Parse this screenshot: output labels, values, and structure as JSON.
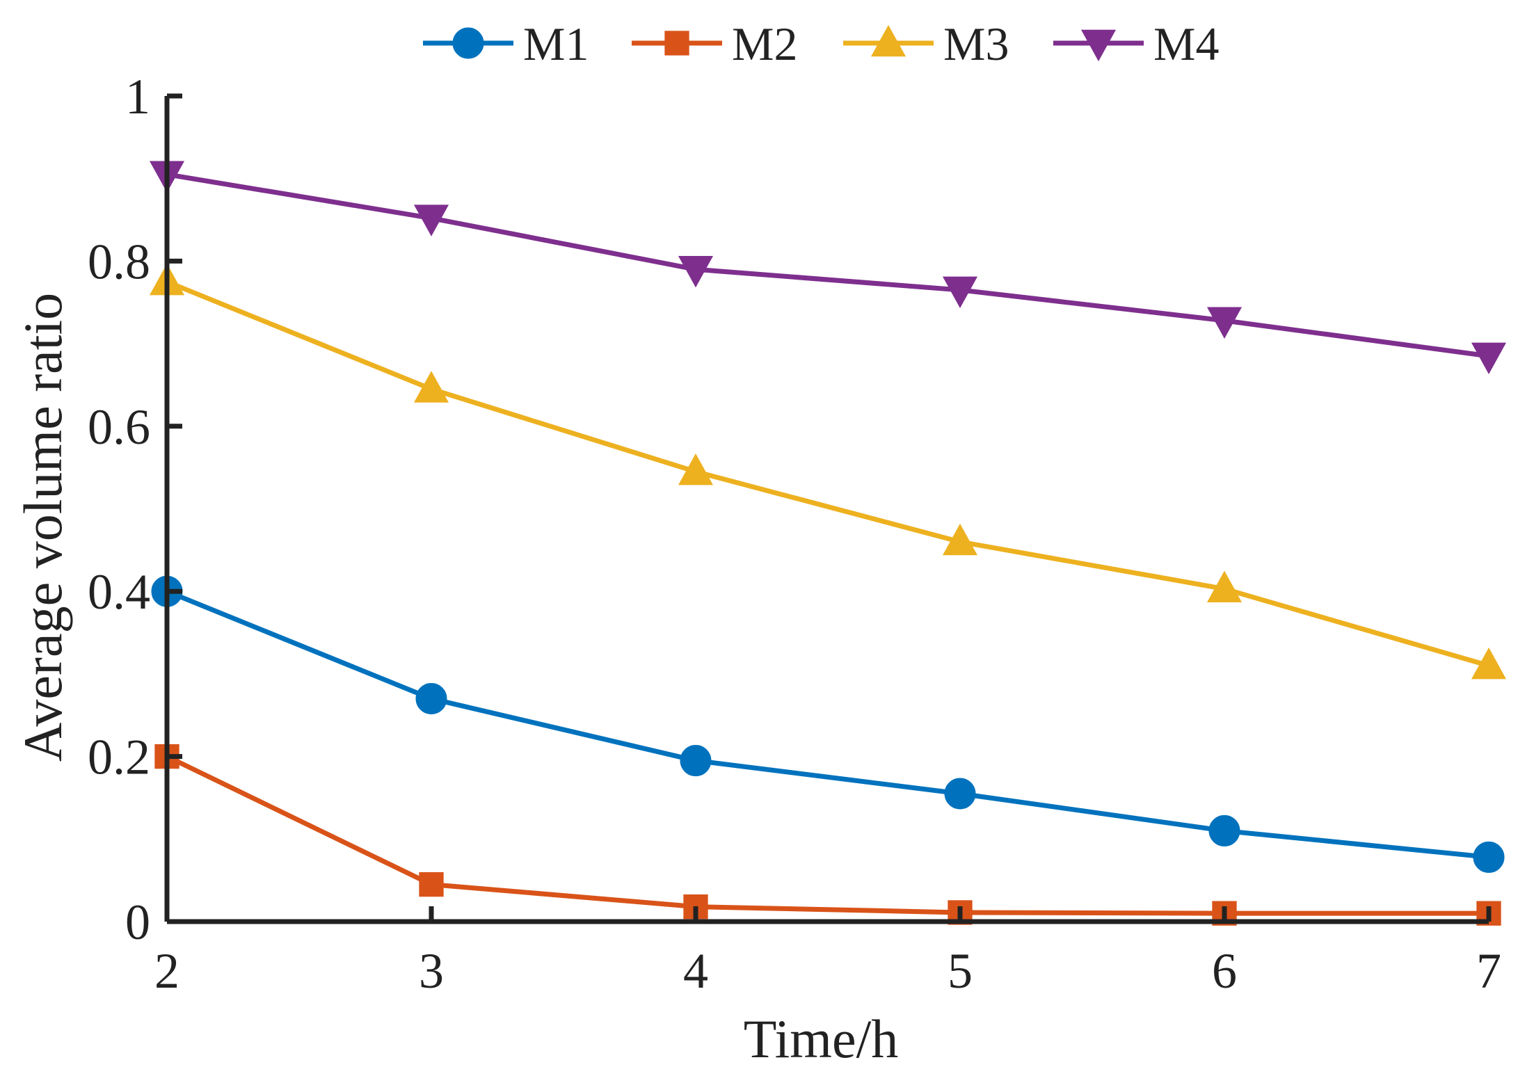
{
  "chart_data": {
    "type": "line",
    "title": "",
    "xlabel": "Time/h",
    "ylabel": "Average volume ratio",
    "xlim": [
      2,
      7
    ],
    "ylim": [
      0,
      1
    ],
    "x": [
      2,
      3,
      4,
      5,
      6,
      7
    ],
    "xticks": [
      "2",
      "3",
      "4",
      "5",
      "6",
      "7"
    ],
    "yticks": [
      "0",
      "0.2",
      "0.4",
      "0.6",
      "0.8",
      "1"
    ],
    "ytick_values": [
      0,
      0.2,
      0.4,
      0.6,
      0.8,
      1
    ],
    "grid": false,
    "legend_position": "top-center",
    "series": [
      {
        "name": "M1",
        "marker": "circle",
        "color": "#0072BD",
        "values": [
          0.4,
          0.27,
          0.195,
          0.155,
          0.11,
          0.078
        ]
      },
      {
        "name": "M2",
        "marker": "square",
        "color": "#D95319",
        "values": [
          0.2,
          0.045,
          0.018,
          0.011,
          0.01,
          0.01
        ]
      },
      {
        "name": "M3",
        "marker": "triangle-up",
        "color": "#EDB120",
        "values": [
          0.775,
          0.645,
          0.545,
          0.46,
          0.403,
          0.31
        ]
      },
      {
        "name": "M4",
        "marker": "triangle-down",
        "color": "#7E2F8E",
        "values": [
          0.905,
          0.852,
          0.79,
          0.765,
          0.728,
          0.685
        ]
      }
    ]
  }
}
